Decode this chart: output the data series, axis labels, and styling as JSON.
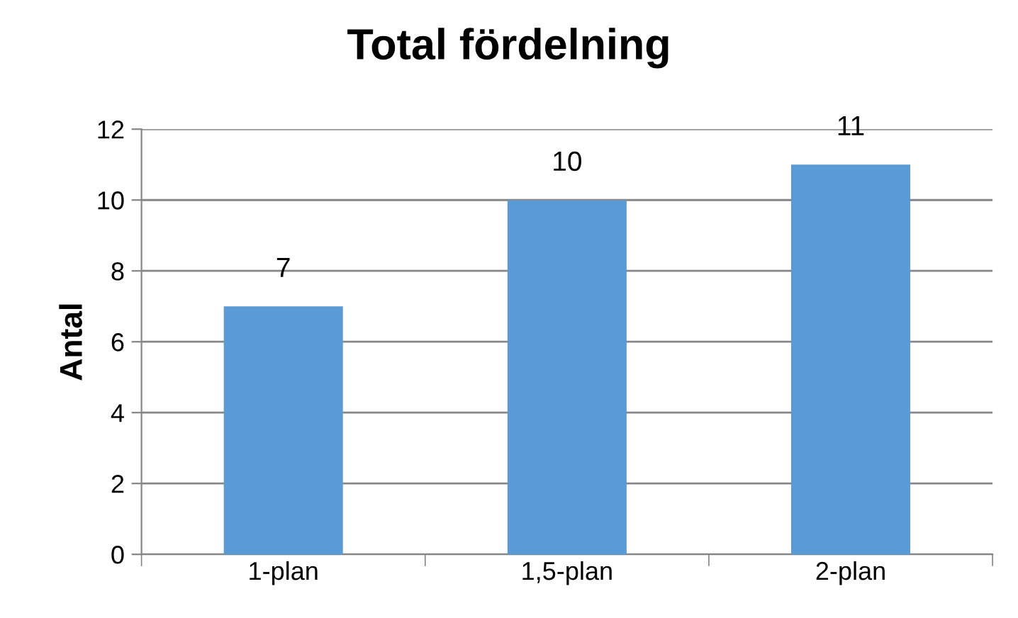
{
  "chart_data": {
    "type": "bar",
    "title": "Total fördelning",
    "ylabel": "Antal",
    "categories": [
      "1-plan",
      "1,5-plan",
      "2-plan"
    ],
    "values": [
      7,
      10,
      11
    ],
    "color": "#5b9bd5",
    "ylim": [
      0,
      12
    ],
    "yticks": [
      0,
      2,
      4,
      6,
      8,
      10,
      12
    ],
    "grid": "y",
    "data_labels": true,
    "legend": false
  }
}
